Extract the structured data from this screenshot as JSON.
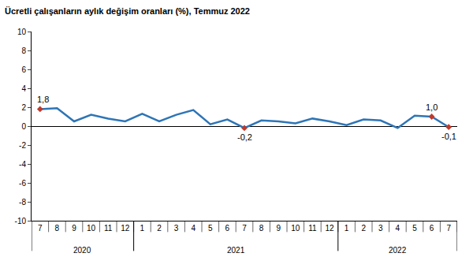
{
  "chart_data": {
    "type": "line",
    "title": "Ücretli çalışanların aylık değişim oranları (%), Temmuz 2022",
    "categories": [
      "7",
      "8",
      "9",
      "10",
      "11",
      "12",
      "1",
      "2",
      "3",
      "4",
      "5",
      "6",
      "7",
      "8",
      "9",
      "10",
      "11",
      "12",
      "1",
      "2",
      "3",
      "4",
      "5",
      "6",
      "7"
    ],
    "years": [
      2020,
      2020,
      2020,
      2020,
      2020,
      2020,
      2021,
      2021,
      2021,
      2021,
      2021,
      2021,
      2021,
      2021,
      2021,
      2021,
      2021,
      2021,
      2022,
      2022,
      2022,
      2022,
      2022,
      2022,
      2022
    ],
    "values": [
      1.8,
      1.9,
      0.5,
      1.2,
      0.8,
      0.5,
      1.3,
      0.5,
      1.2,
      1.7,
      0.2,
      0.7,
      -0.2,
      0.6,
      0.5,
      0.3,
      0.8,
      0.5,
      0.1,
      0.7,
      0.6,
      -0.2,
      1.1,
      1.0,
      -0.1
    ],
    "value_labels": [
      "1,8",
      null,
      null,
      null,
      null,
      null,
      null,
      null,
      null,
      null,
      null,
      null,
      "-0,2",
      null,
      null,
      null,
      null,
      null,
      null,
      null,
      null,
      null,
      null,
      "1,0",
      "-0,1"
    ],
    "color": "#2e75b6",
    "marker_color": "#c0392b",
    "ylim": [
      -10,
      10
    ],
    "yticks": [
      -10,
      -8,
      -6,
      -4,
      -2,
      0,
      2,
      4,
      6,
      8,
      10
    ],
    "grid": false
  }
}
